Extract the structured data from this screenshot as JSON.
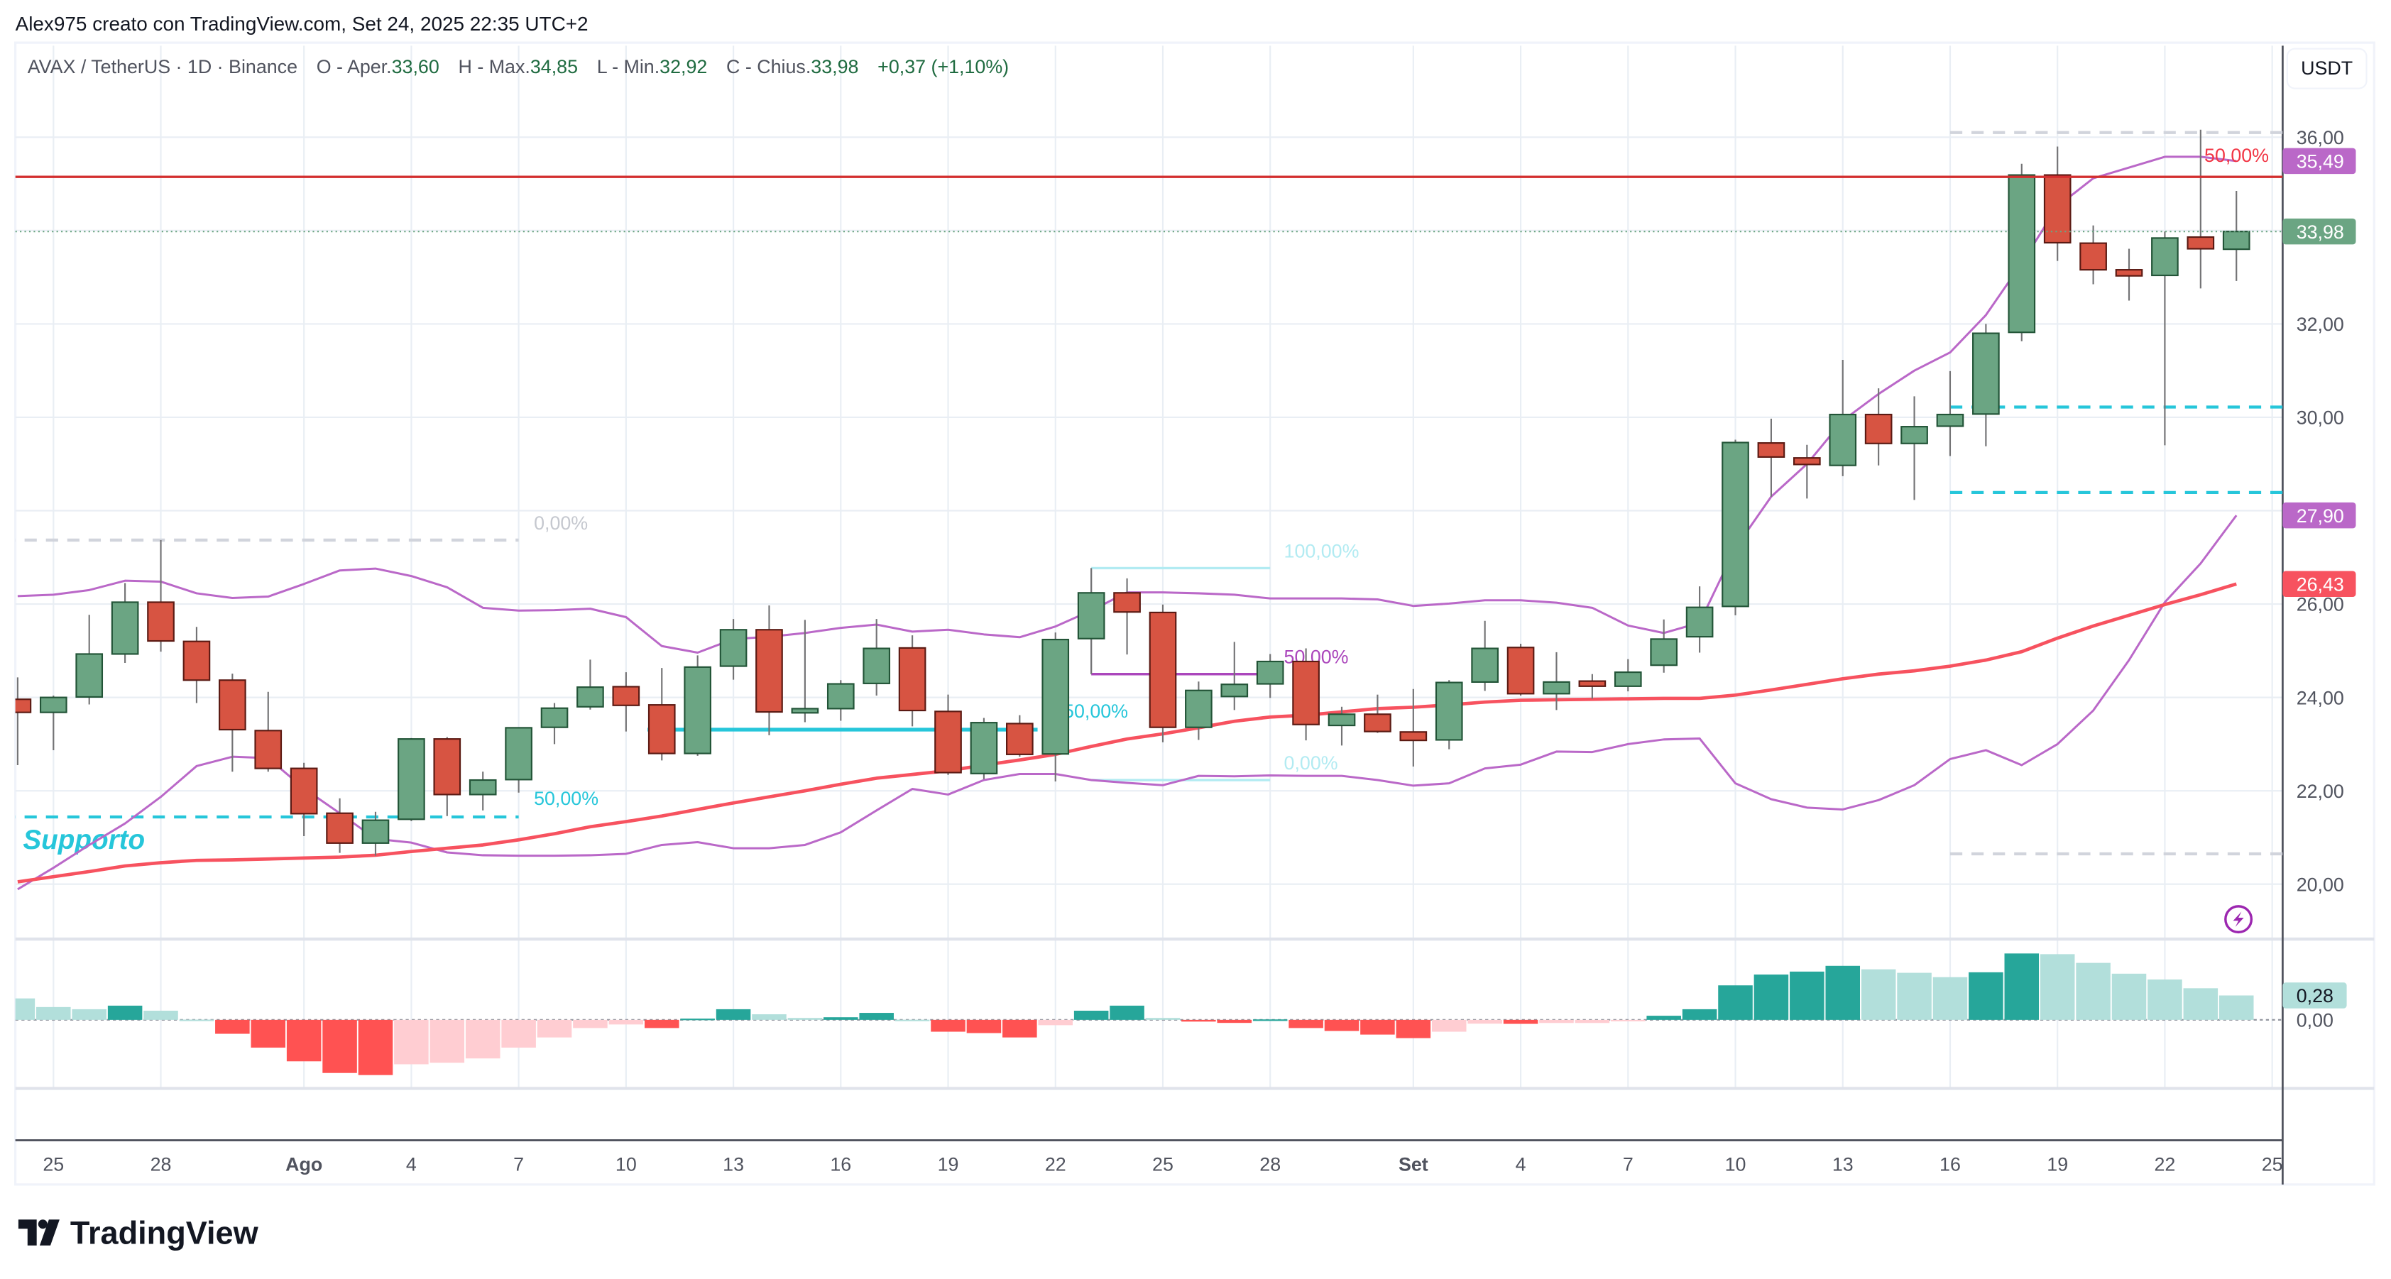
{
  "header": {
    "attribution": "Alex975 creato con TradingView.com, Set 24, 2025 22:35 UTC+2",
    "symbol": "AVAX / TetherUS · 1D · Binance",
    "open_label": "O - Aper.",
    "open": "33,60",
    "high_label": "H - Max.",
    "high": "34,85",
    "low_label": "L - Min.",
    "low": "32,92",
    "close_label": "C - Chius.",
    "close": "33,98",
    "change": "+0,37 (+1,10%)"
  },
  "currency_button": "USDT",
  "logo": {
    "text": "TradingView"
  },
  "colors": {
    "up_fill": "#6ba583",
    "up_border": "#225437",
    "down_fill": "#d75442",
    "down_border": "#5b1a13",
    "wick": "#737375",
    "ma": "#f7525f",
    "bands": "#ba68c8",
    "hist_up_strong": "#26a69a",
    "hist_up_weak": "#b2dfdb",
    "hist_down_strong": "#ff5252",
    "hist_down_weak": "#ffcdd2",
    "support": "#26c6da",
    "resistance": "#d32f2f",
    "fib_light": "#b2ebf2",
    "fib_mid": "#ab47bc",
    "gray_dash": "#d1d4dc"
  },
  "chart_data": {
    "type": "candlestick",
    "ylim": [
      19.3,
      37.8
    ],
    "grid": true,
    "y_ticks": [
      {
        "value": 36,
        "label": "36,00"
      },
      {
        "value": 32,
        "label": "32,00"
      },
      {
        "value": 30,
        "label": "30,00"
      },
      {
        "value": 26,
        "label": "26,00"
      },
      {
        "value": 24,
        "label": "24,00"
      },
      {
        "value": 22,
        "label": "22,00"
      },
      {
        "value": 20,
        "label": "20,00"
      }
    ],
    "x_ticks": [
      {
        "date": "2025-07-25",
        "label": "25"
      },
      {
        "date": "2025-07-28",
        "label": "28"
      },
      {
        "date": "2025-08-01",
        "label": "Ago"
      },
      {
        "date": "2025-08-04",
        "label": "4"
      },
      {
        "date": "2025-08-07",
        "label": "7"
      },
      {
        "date": "2025-08-10",
        "label": "10"
      },
      {
        "date": "2025-08-13",
        "label": "13"
      },
      {
        "date": "2025-08-16",
        "label": "16"
      },
      {
        "date": "2025-08-19",
        "label": "19"
      },
      {
        "date": "2025-08-22",
        "label": "22"
      },
      {
        "date": "2025-08-25",
        "label": "25"
      },
      {
        "date": "2025-08-28",
        "label": "28"
      },
      {
        "date": "2025-09-01",
        "label": "Set"
      },
      {
        "date": "2025-09-04",
        "label": "4"
      },
      {
        "date": "2025-09-07",
        "label": "7"
      },
      {
        "date": "2025-09-10",
        "label": "10"
      },
      {
        "date": "2025-09-13",
        "label": "13"
      },
      {
        "date": "2025-09-16",
        "label": "16"
      },
      {
        "date": "2025-09-19",
        "label": "19"
      },
      {
        "date": "2025-09-22",
        "label": "22"
      },
      {
        "date": "2025-09-25",
        "label": "25"
      }
    ],
    "first_date": "2025-07-24",
    "candles": [
      [
        23.96,
        24.43,
        22.55,
        23.68
      ],
      [
        23.68,
        24.04,
        22.87,
        24.0
      ],
      [
        24.01,
        25.77,
        23.85,
        24.93
      ],
      [
        24.93,
        26.45,
        24.74,
        26.04
      ],
      [
        26.04,
        27.37,
        24.98,
        25.21
      ],
      [
        25.2,
        25.51,
        23.88,
        24.37
      ],
      [
        24.37,
        24.51,
        22.41,
        23.31
      ],
      [
        23.29,
        24.12,
        22.41,
        22.48
      ],
      [
        22.48,
        22.6,
        21.03,
        21.51
      ],
      [
        21.52,
        21.84,
        20.67,
        20.88
      ],
      [
        20.88,
        21.55,
        20.61,
        21.37
      ],
      [
        21.39,
        23.13,
        21.35,
        23.11
      ],
      [
        23.11,
        23.15,
        21.46,
        21.92
      ],
      [
        21.92,
        22.41,
        21.58,
        22.23
      ],
      [
        22.24,
        23.36,
        21.96,
        23.35
      ],
      [
        23.36,
        23.88,
        23.0,
        23.77
      ],
      [
        23.8,
        24.81,
        23.74,
        24.22
      ],
      [
        24.23,
        24.54,
        23.27,
        23.83
      ],
      [
        23.84,
        24.63,
        22.65,
        22.8
      ],
      [
        22.8,
        24.9,
        22.75,
        24.65
      ],
      [
        24.67,
        25.68,
        24.38,
        25.45
      ],
      [
        25.45,
        25.97,
        23.19,
        23.69
      ],
      [
        23.67,
        25.66,
        23.47,
        23.76
      ],
      [
        23.76,
        24.37,
        23.5,
        24.29
      ],
      [
        24.3,
        25.68,
        24.04,
        25.05
      ],
      [
        25.06,
        25.33,
        23.38,
        23.72
      ],
      [
        23.7,
        24.06,
        22.34,
        22.39
      ],
      [
        22.37,
        23.56,
        22.25,
        23.46
      ],
      [
        23.44,
        23.62,
        22.73,
        22.78
      ],
      [
        22.79,
        25.39,
        22.2,
        25.24
      ],
      [
        25.26,
        26.77,
        24.5,
        26.24
      ],
      [
        26.24,
        26.55,
        24.92,
        25.83
      ],
      [
        25.82,
        25.99,
        23.04,
        23.36
      ],
      [
        23.36,
        24.34,
        23.09,
        24.15
      ],
      [
        24.02,
        25.19,
        23.73,
        24.28
      ],
      [
        24.29,
        24.93,
        23.99,
        24.77
      ],
      [
        24.77,
        25.05,
        23.08,
        23.42
      ],
      [
        23.4,
        23.8,
        22.97,
        23.64
      ],
      [
        23.64,
        24.06,
        23.24,
        23.27
      ],
      [
        23.26,
        24.18,
        22.52,
        23.08
      ],
      [
        23.09,
        24.37,
        22.89,
        24.32
      ],
      [
        24.33,
        25.64,
        24.14,
        25.05
      ],
      [
        25.07,
        25.15,
        24.04,
        24.08
      ],
      [
        24.08,
        24.97,
        23.73,
        24.33
      ],
      [
        24.35,
        24.5,
        23.97,
        24.24
      ],
      [
        24.24,
        24.82,
        24.13,
        24.54
      ],
      [
        24.69,
        25.67,
        24.53,
        25.25
      ],
      [
        25.3,
        26.38,
        24.96,
        25.93
      ],
      [
        25.95,
        29.52,
        25.76,
        29.46
      ],
      [
        29.45,
        29.97,
        28.3,
        29.15
      ],
      [
        29.13,
        29.41,
        28.26,
        28.99
      ],
      [
        28.97,
        31.23,
        28.74,
        30.06
      ],
      [
        30.06,
        30.62,
        28.97,
        29.44
      ],
      [
        29.44,
        30.45,
        28.23,
        29.8
      ],
      [
        29.81,
        30.99,
        29.17,
        30.06
      ],
      [
        30.07,
        32.0,
        29.38,
        31.8
      ],
      [
        31.82,
        35.43,
        31.63,
        35.19
      ],
      [
        35.19,
        35.8,
        33.35,
        33.74
      ],
      [
        33.73,
        34.11,
        32.85,
        33.16
      ],
      [
        33.16,
        33.61,
        32.5,
        33.03
      ],
      [
        33.04,
        33.98,
        29.4,
        33.84
      ],
      [
        33.86,
        36.16,
        32.76,
        33.61
      ],
      [
        33.6,
        34.85,
        32.92,
        33.98
      ]
    ],
    "candle_fields": [
      "open",
      "high",
      "low",
      "close"
    ],
    "upper_band": [
      26.17,
      26.2,
      26.3,
      26.5,
      26.48,
      26.23,
      26.13,
      26.16,
      26.43,
      26.72,
      26.76,
      26.6,
      26.36,
      25.92,
      25.86,
      25.87,
      25.9,
      25.72,
      25.1,
      24.96,
      25.25,
      25.3,
      25.38,
      25.49,
      25.56,
      25.41,
      25.45,
      25.35,
      25.29,
      25.52,
      25.86,
      26.25,
      26.25,
      26.23,
      26.2,
      26.12,
      26.12,
      26.12,
      26.1,
      25.96,
      26.01,
      26.08,
      26.08,
      26.03,
      25.92,
      25.54,
      25.38,
      25.6,
      27.2,
      28.3,
      29.0,
      29.93,
      30.5,
      31.0,
      31.39,
      32.19,
      33.3,
      34.52,
      35.12,
      35.35,
      35.58,
      35.58,
      35.49
    ],
    "lower_band": [
      19.89,
      20.35,
      20.84,
      21.3,
      21.87,
      22.53,
      22.73,
      22.7,
      22.05,
      21.52,
      20.97,
      20.89,
      20.68,
      20.62,
      20.61,
      20.61,
      20.62,
      20.65,
      20.84,
      20.9,
      20.77,
      20.77,
      20.84,
      21.11,
      21.58,
      22.04,
      21.92,
      22.23,
      22.36,
      22.36,
      22.23,
      22.17,
      22.12,
      22.32,
      22.31,
      22.33,
      22.32,
      22.32,
      22.23,
      22.11,
      22.16,
      22.48,
      22.56,
      22.84,
      22.83,
      23.0,
      23.1,
      23.12,
      22.16,
      21.82,
      21.64,
      21.6,
      21.8,
      22.12,
      22.68,
      22.87,
      22.55,
      23.0,
      23.72,
      24.8,
      26.04,
      26.87,
      27.9
    ],
    "moving_average": [
      20.05,
      20.16,
      20.27,
      20.39,
      20.46,
      20.51,
      20.52,
      20.54,
      20.56,
      20.58,
      20.62,
      20.7,
      20.77,
      20.84,
      20.95,
      21.08,
      21.23,
      21.34,
      21.46,
      21.6,
      21.74,
      21.87,
      22.0,
      22.14,
      22.27,
      22.35,
      22.43,
      22.55,
      22.66,
      22.78,
      22.95,
      23.11,
      23.22,
      23.35,
      23.49,
      23.58,
      23.62,
      23.69,
      23.76,
      23.79,
      23.84,
      23.9,
      23.94,
      23.95,
      23.96,
      23.97,
      23.98,
      23.98,
      24.05,
      24.16,
      24.28,
      24.4,
      24.5,
      24.57,
      24.67,
      24.8,
      24.98,
      25.27,
      25.53,
      25.76,
      25.99,
      26.2,
      26.43
    ],
    "histogram": [
      0.246,
      0.147,
      0.122,
      0.163,
      0.105,
      0.003,
      -0.16,
      -0.319,
      -0.476,
      -0.61,
      -0.634,
      -0.51,
      -0.493,
      -0.443,
      -0.319,
      -0.202,
      -0.094,
      -0.053,
      -0.094,
      0.014,
      0.122,
      0.064,
      0.022,
      0.03,
      0.08,
      0.002,
      -0.136,
      -0.152,
      -0.202,
      -0.061,
      0.105,
      0.163,
      0.022,
      -0.02,
      -0.035,
      0.005,
      -0.094,
      -0.128,
      -0.169,
      -0.21,
      -0.136,
      -0.044,
      -0.046,
      -0.036,
      -0.036,
      -0.006,
      0.047,
      0.122,
      0.396,
      0.52,
      0.554,
      0.62,
      0.58,
      0.54,
      0.49,
      0.546,
      0.762,
      0.754,
      0.654,
      0.53,
      0.463,
      0.363,
      0.28
    ],
    "price_badges": [
      {
        "value": 35.49,
        "label": "35,49",
        "color": "#ba68c8"
      },
      {
        "value": 33.98,
        "label": "33,98",
        "color": "#6ba583"
      },
      {
        "value": 27.9,
        "label": "27,90",
        "color": "#ba68c8"
      },
      {
        "value": 26.43,
        "label": "26,43",
        "color": "#f7525f"
      }
    ],
    "histogram_badge": {
      "value": 0.28,
      "label": "0,28",
      "color": "#b2dfdb"
    },
    "histogram_zero_label": "0,00",
    "drawings": {
      "resistance_line": {
        "price": 35.15
      },
      "last_price_line": {
        "price": 33.98
      },
      "left_zone": {
        "start": "2025-07-23",
        "end": "2025-08-07",
        "top": 27.37,
        "mid": 21.44,
        "top_label": "0,00%",
        "mid_label": "50,00%"
      },
      "support_text": {
        "text": "Supporto",
        "date": "2025-07-24",
        "price": 20.95
      },
      "support_segment": {
        "start": "2025-08-11",
        "end": "2025-08-21",
        "price": 23.31,
        "label": "50,00%"
      },
      "fib": {
        "start": "2025-08-23",
        "end": "2025-08-28",
        "levels": [
          {
            "price": 26.77,
            "label": "100,00%"
          },
          {
            "price": 24.5,
            "label": "50,00%"
          },
          {
            "price": 22.23,
            "label": "0,00%"
          }
        ]
      },
      "right_zone": {
        "start": "2025-09-16",
        "levels": [
          36.1,
          30.22,
          28.39,
          20.65
        ],
        "label": "50,00%",
        "label_price": 35.6
      }
    }
  }
}
